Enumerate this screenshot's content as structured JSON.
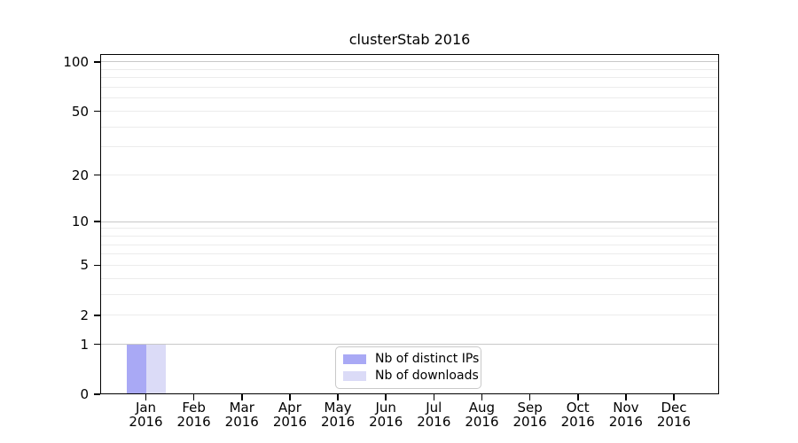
{
  "title": "clusterStab 2016",
  "chart_data": {
    "type": "bar",
    "title": "clusterStab 2016",
    "categories": [
      "Jan 2016",
      "Feb 2016",
      "Mar 2016",
      "Apr 2016",
      "May 2016",
      "Jun 2016",
      "Jul 2016",
      "Aug 2016",
      "Sep 2016",
      "Oct 2016",
      "Nov 2016",
      "Dec 2016"
    ],
    "x_months": [
      "Jan",
      "Feb",
      "Mar",
      "Apr",
      "May",
      "Jun",
      "Jul",
      "Aug",
      "Sep",
      "Oct",
      "Nov",
      "Dec"
    ],
    "x_year": "2016",
    "series": [
      {
        "name": "Nb of distinct IPs",
        "color": "#a9a9f5",
        "values": [
          1,
          0,
          0,
          0,
          0,
          0,
          0,
          0,
          0,
          0,
          0,
          0
        ]
      },
      {
        "name": "Nb of downloads",
        "color": "#dbdbf7",
        "values": [
          1,
          0,
          0,
          0,
          0,
          0,
          0,
          0,
          0,
          0,
          0,
          0
        ]
      }
    ],
    "yaxis": {
      "scale": "log1p",
      "tick_values": [
        0,
        1,
        2,
        5,
        10,
        20,
        50,
        100
      ],
      "tick_labels": [
        "0",
        "1",
        "2",
        "5",
        "10",
        "20",
        "50",
        "100"
      ],
      "minor_gridlines": [
        2,
        3,
        4,
        5,
        6,
        7,
        8,
        9,
        20,
        30,
        40,
        50,
        60,
        70,
        80,
        90
      ],
      "major_gridlines": [
        1,
        10,
        100
      ],
      "range": [
        0,
        110
      ]
    },
    "legend": {
      "entries": [
        "Nb of distinct IPs",
        "Nb of downloads"
      ],
      "position": "lower center inside"
    },
    "grid": true
  },
  "colors": {
    "background": "#ffffff",
    "bar_distinct_ips": "#a9a9f5",
    "bar_downloads": "#dbdbf7",
    "grid_minor": "#ececec",
    "grid_major": "#c8c8c8",
    "axis": "#000000",
    "legend_border": "#c9c9c9",
    "text": "#000000"
  }
}
